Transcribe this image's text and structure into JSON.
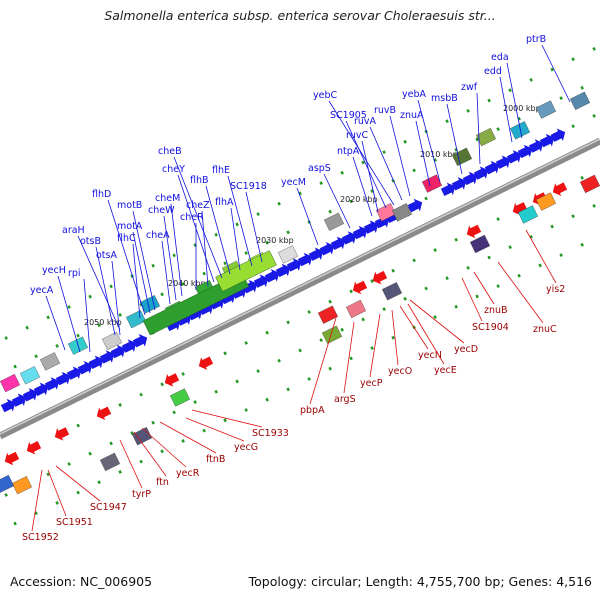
{
  "title": "Salmonella enterica subsp. enterica serovar Choleraesuis str...",
  "accession": "Accession: NC_006905",
  "topology": "Topology: circular; Length: 4,755,700 bp; Genes: 4,516",
  "kbp_marks": [
    "2050 kbp",
    "2040 kbp",
    "2030 kbp",
    "2020 kbp",
    "2010 kbp",
    "2000 kbp"
  ],
  "forward_labels": [
    "yecA",
    "yecH",
    "rpi",
    "otsB",
    "otsA",
    "araH",
    "flhC",
    "flhD",
    "motA",
    "motB",
    "cheA",
    "cheW",
    "cheM",
    "cheR",
    "cheZ",
    "cheY",
    "cheB",
    "flhB",
    "flhA",
    "flhE",
    "SC1918",
    "yecM",
    "aspS",
    "ntpA",
    "ruvC",
    "SC1905",
    "yebC",
    "ruvA",
    "ruvB",
    "znuA",
    "yebA",
    "msbB",
    "zwf",
    "edd",
    "eda",
    "ptrB"
  ],
  "reverse_labels": [
    "SC1952",
    "SC1951",
    "SC1947",
    "tyrP",
    "ftn",
    "yecR",
    "ftnB",
    "yecG",
    "SC1933",
    "pbpA",
    "argS",
    "yecP",
    "yecO",
    "yecN",
    "yecE",
    "yecD",
    "SC1904",
    "znuB",
    "znuC",
    "yis2"
  ],
  "colors": {
    "forward_label": "#1010dd",
    "reverse_label": "#dd1010",
    "forward_gene": "#1a1ae6",
    "reverse_gene": "#ee1111",
    "backbone": "#888888",
    "tick": "#229922"
  }
}
